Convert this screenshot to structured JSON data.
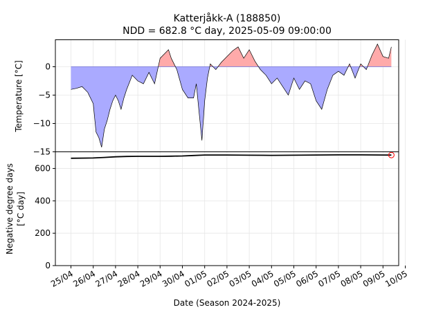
{
  "title": {
    "line1": "Katterjåkk-A (188850)",
    "line2": "NDD = 682.8 °C day, 2025-05-09 09:00:00"
  },
  "chart_data": [
    {
      "type": "area",
      "ylabel": "Temperature [°C]",
      "ylim": [
        -15,
        5
      ],
      "yticks": [
        -15,
        -10,
        -5,
        0
      ],
      "grid": true,
      "fill_colors": {
        "below_zero": "#aaaaff",
        "above_zero": "#ffaaaa"
      },
      "series": [
        {
          "x": [
            "2025-04-25 00:00",
            "2025-04-25 06:00",
            "2025-04-25 12:00",
            "2025-04-25 18:00",
            "2025-04-26 00:00",
            "2025-04-26 03:00",
            "2025-04-26 06:00",
            "2025-04-26 09:00",
            "2025-04-26 12:00",
            "2025-04-26 15:00",
            "2025-04-26 18:00",
            "2025-04-26 21:00",
            "2025-04-27 00:00",
            "2025-04-27 03:00",
            "2025-04-27 06:00",
            "2025-04-27 09:00",
            "2025-04-27 12:00",
            "2025-04-27 18:00",
            "2025-04-28 00:00",
            "2025-04-28 06:00",
            "2025-04-28 12:00",
            "2025-04-28 18:00",
            "2025-04-29 00:00",
            "2025-04-29 06:00",
            "2025-04-29 09:00",
            "2025-04-29 12:00",
            "2025-04-29 18:00",
            "2025-04-30 00:00",
            "2025-04-30 06:00",
            "2025-04-30 12:00",
            "2025-04-30 15:00",
            "2025-04-30 18:00",
            "2025-04-30 21:00",
            "2025-05-01 00:00",
            "2025-05-01 03:00",
            "2025-05-01 06:00",
            "2025-05-01 12:00",
            "2025-05-01 18:00",
            "2025-05-02 00:00",
            "2025-05-02 06:00",
            "2025-05-02 12:00",
            "2025-05-02 18:00",
            "2025-05-03 00:00",
            "2025-05-03 06:00",
            "2025-05-03 12:00",
            "2025-05-03 18:00",
            "2025-05-04 00:00",
            "2025-05-04 06:00",
            "2025-05-04 12:00",
            "2025-05-04 18:00",
            "2025-05-05 00:00",
            "2025-05-05 06:00",
            "2025-05-05 12:00",
            "2025-05-05 18:00",
            "2025-05-06 00:00",
            "2025-05-06 06:00",
            "2025-05-06 12:00",
            "2025-05-06 18:00",
            "2025-05-07 00:00",
            "2025-05-07 06:00",
            "2025-05-07 12:00",
            "2025-05-07 18:00",
            "2025-05-08 00:00",
            "2025-05-08 06:00",
            "2025-05-08 12:00",
            "2025-05-08 18:00",
            "2025-05-09 00:00",
            "2025-05-09 06:00",
            "2025-05-09 09:00"
          ],
          "y": [
            -4.0,
            -3.8,
            -3.5,
            -4.5,
            -6.5,
            -11.5,
            -12.5,
            -14.2,
            -11.0,
            -9.5,
            -7.5,
            -6.0,
            -5.0,
            -6.0,
            -7.5,
            -5.5,
            -4.0,
            -1.5,
            -2.5,
            -3.0,
            -1.0,
            -3.0,
            1.5,
            2.5,
            3.0,
            1.5,
            -0.5,
            -4.0,
            -5.5,
            -5.5,
            -3.0,
            -8.0,
            -13.0,
            -6.0,
            -2.0,
            0.5,
            -0.5,
            0.8,
            1.8,
            2.8,
            3.5,
            1.5,
            3.0,
            1.0,
            -0.5,
            -1.5,
            -3.0,
            -2.0,
            -3.5,
            -5.0,
            -2.0,
            -4.0,
            -2.5,
            -3.0,
            -6.0,
            -7.5,
            -4.0,
            -1.5,
            -0.8,
            -1.5,
            0.5,
            -2.0,
            0.5,
            -0.5,
            2.0,
            4.0,
            1.8,
            1.5,
            3.5
          ]
        }
      ]
    },
    {
      "type": "line",
      "xlabel": "Date (Season 2024-2025)",
      "ylabel": "Negative degree days\n[°C day]",
      "ylim": [
        0,
        690
      ],
      "yticks": [
        0,
        200,
        400,
        600
      ],
      "grid": true,
      "x_ticks": [
        "25/04",
        "26/04",
        "27/04",
        "28/04",
        "29/04",
        "30/04",
        "01/05",
        "02/05",
        "03/05",
        "04/05",
        "05/05",
        "06/05",
        "07/05",
        "08/05",
        "09/05",
        "10/05"
      ],
      "series": [
        {
          "x": [
            "2025-04-25 00:00",
            "2025-04-26 00:00",
            "2025-04-26 12:00",
            "2025-04-27 00:00",
            "2025-04-27 12:00",
            "2025-04-28 00:00",
            "2025-04-29 00:00",
            "2025-04-29 12:00",
            "2025-04-30 00:00",
            "2025-04-30 12:00",
            "2025-05-01 00:00",
            "2025-05-02 00:00",
            "2025-05-03 00:00",
            "2025-05-04 00:00",
            "2025-05-05 00:00",
            "2025-05-06 00:00",
            "2025-05-07 00:00",
            "2025-05-08 00:00",
            "2025-05-09 00:00",
            "2025-05-09 09:00"
          ],
          "y": [
            663,
            665,
            668,
            672,
            674,
            675,
            675,
            676,
            677,
            680,
            683,
            683,
            682,
            681,
            682,
            683,
            684,
            684,
            683,
            682.8
          ]
        }
      ],
      "marker": {
        "x": "2025-05-09 09:00",
        "y": 682.8,
        "color": "#ff0000"
      }
    }
  ]
}
